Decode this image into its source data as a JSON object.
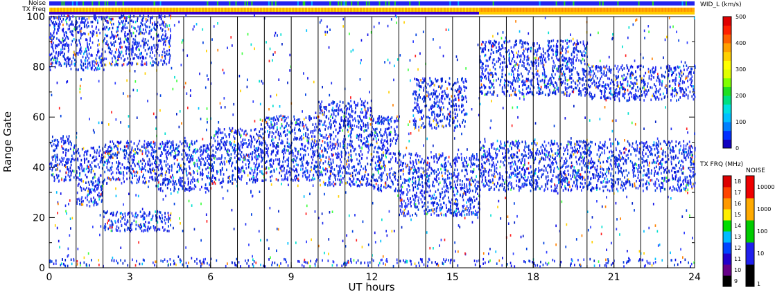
{
  "chart_data": {
    "type": "heatmap",
    "xlabel": "UT hours",
    "ylabel": "Range Gate",
    "xlim": [
      0,
      24
    ],
    "ylim": [
      0,
      100
    ],
    "x_ticks": [
      0,
      3,
      6,
      9,
      12,
      15,
      18,
      21,
      24
    ],
    "y_ticks": [
      0,
      20,
      40,
      60,
      80,
      100
    ],
    "hour_lines": [
      1,
      2,
      3,
      4,
      5,
      6,
      7,
      8,
      9,
      10,
      11,
      12,
      13,
      14,
      15,
      16,
      17,
      18,
      19,
      20,
      21,
      22,
      23
    ],
    "top_bars": {
      "noise_label": "Noise",
      "txfreq_label": "TX Freq"
    },
    "colorbars": {
      "width": {
        "title": "WID_L (km/s)",
        "ticks": [
          "0",
          "100",
          "200",
          "300",
          "400",
          "500"
        ],
        "range": [
          0,
          500
        ]
      },
      "txfreq": {
        "title": "TX FRQ (MHz)",
        "ticks": [
          "9",
          "10",
          "11",
          "12",
          "13",
          "14",
          "15",
          "16",
          "17",
          "18"
        ]
      },
      "noise": {
        "title": "NOISE",
        "ticks": [
          "1",
          "10",
          "100",
          "1000",
          "10000"
        ]
      }
    },
    "bands": [
      {
        "t0": 0.0,
        "t1": 1.0,
        "g0": 34,
        "g1": 52
      },
      {
        "t0": 1.0,
        "t1": 2.0,
        "g0": 24,
        "g1": 48
      },
      {
        "t0": 2.0,
        "t1": 4.0,
        "g0": 33,
        "g1": 50
      },
      {
        "t0": 4.0,
        "t1": 6.0,
        "g0": 30,
        "g1": 50
      },
      {
        "t0": 6.0,
        "t1": 8.0,
        "g0": 33,
        "g1": 55
      },
      {
        "t0": 8.0,
        "t1": 10.0,
        "g0": 34,
        "g1": 60
      },
      {
        "t0": 10.0,
        "t1": 12.0,
        "g0": 32,
        "g1": 66
      },
      {
        "t0": 12.0,
        "t1": 13.0,
        "g0": 30,
        "g1": 60
      },
      {
        "t0": 13.0,
        "t1": 16.0,
        "g0": 20,
        "g1": 45
      },
      {
        "t0": 13.5,
        "t1": 15.5,
        "g0": 55,
        "g1": 75
      },
      {
        "t0": 16.0,
        "t1": 24.0,
        "g0": 30,
        "g1": 50
      },
      {
        "t0": 16.0,
        "t1": 20.0,
        "g0": 68,
        "g1": 90
      },
      {
        "t0": 20.0,
        "t1": 24.0,
        "g0": 66,
        "g1": 80
      },
      {
        "t0": 0.0,
        "t1": 2.0,
        "g0": 78,
        "g1": 100
      },
      {
        "t0": 2.0,
        "t1": 4.5,
        "g0": 80,
        "g1": 100
      },
      {
        "t0": 2.0,
        "t1": 4.5,
        "g0": 14,
        "g1": 22
      },
      {
        "t0": 0.0,
        "t1": 24.0,
        "g0": 0,
        "g1": 3
      }
    ]
  }
}
